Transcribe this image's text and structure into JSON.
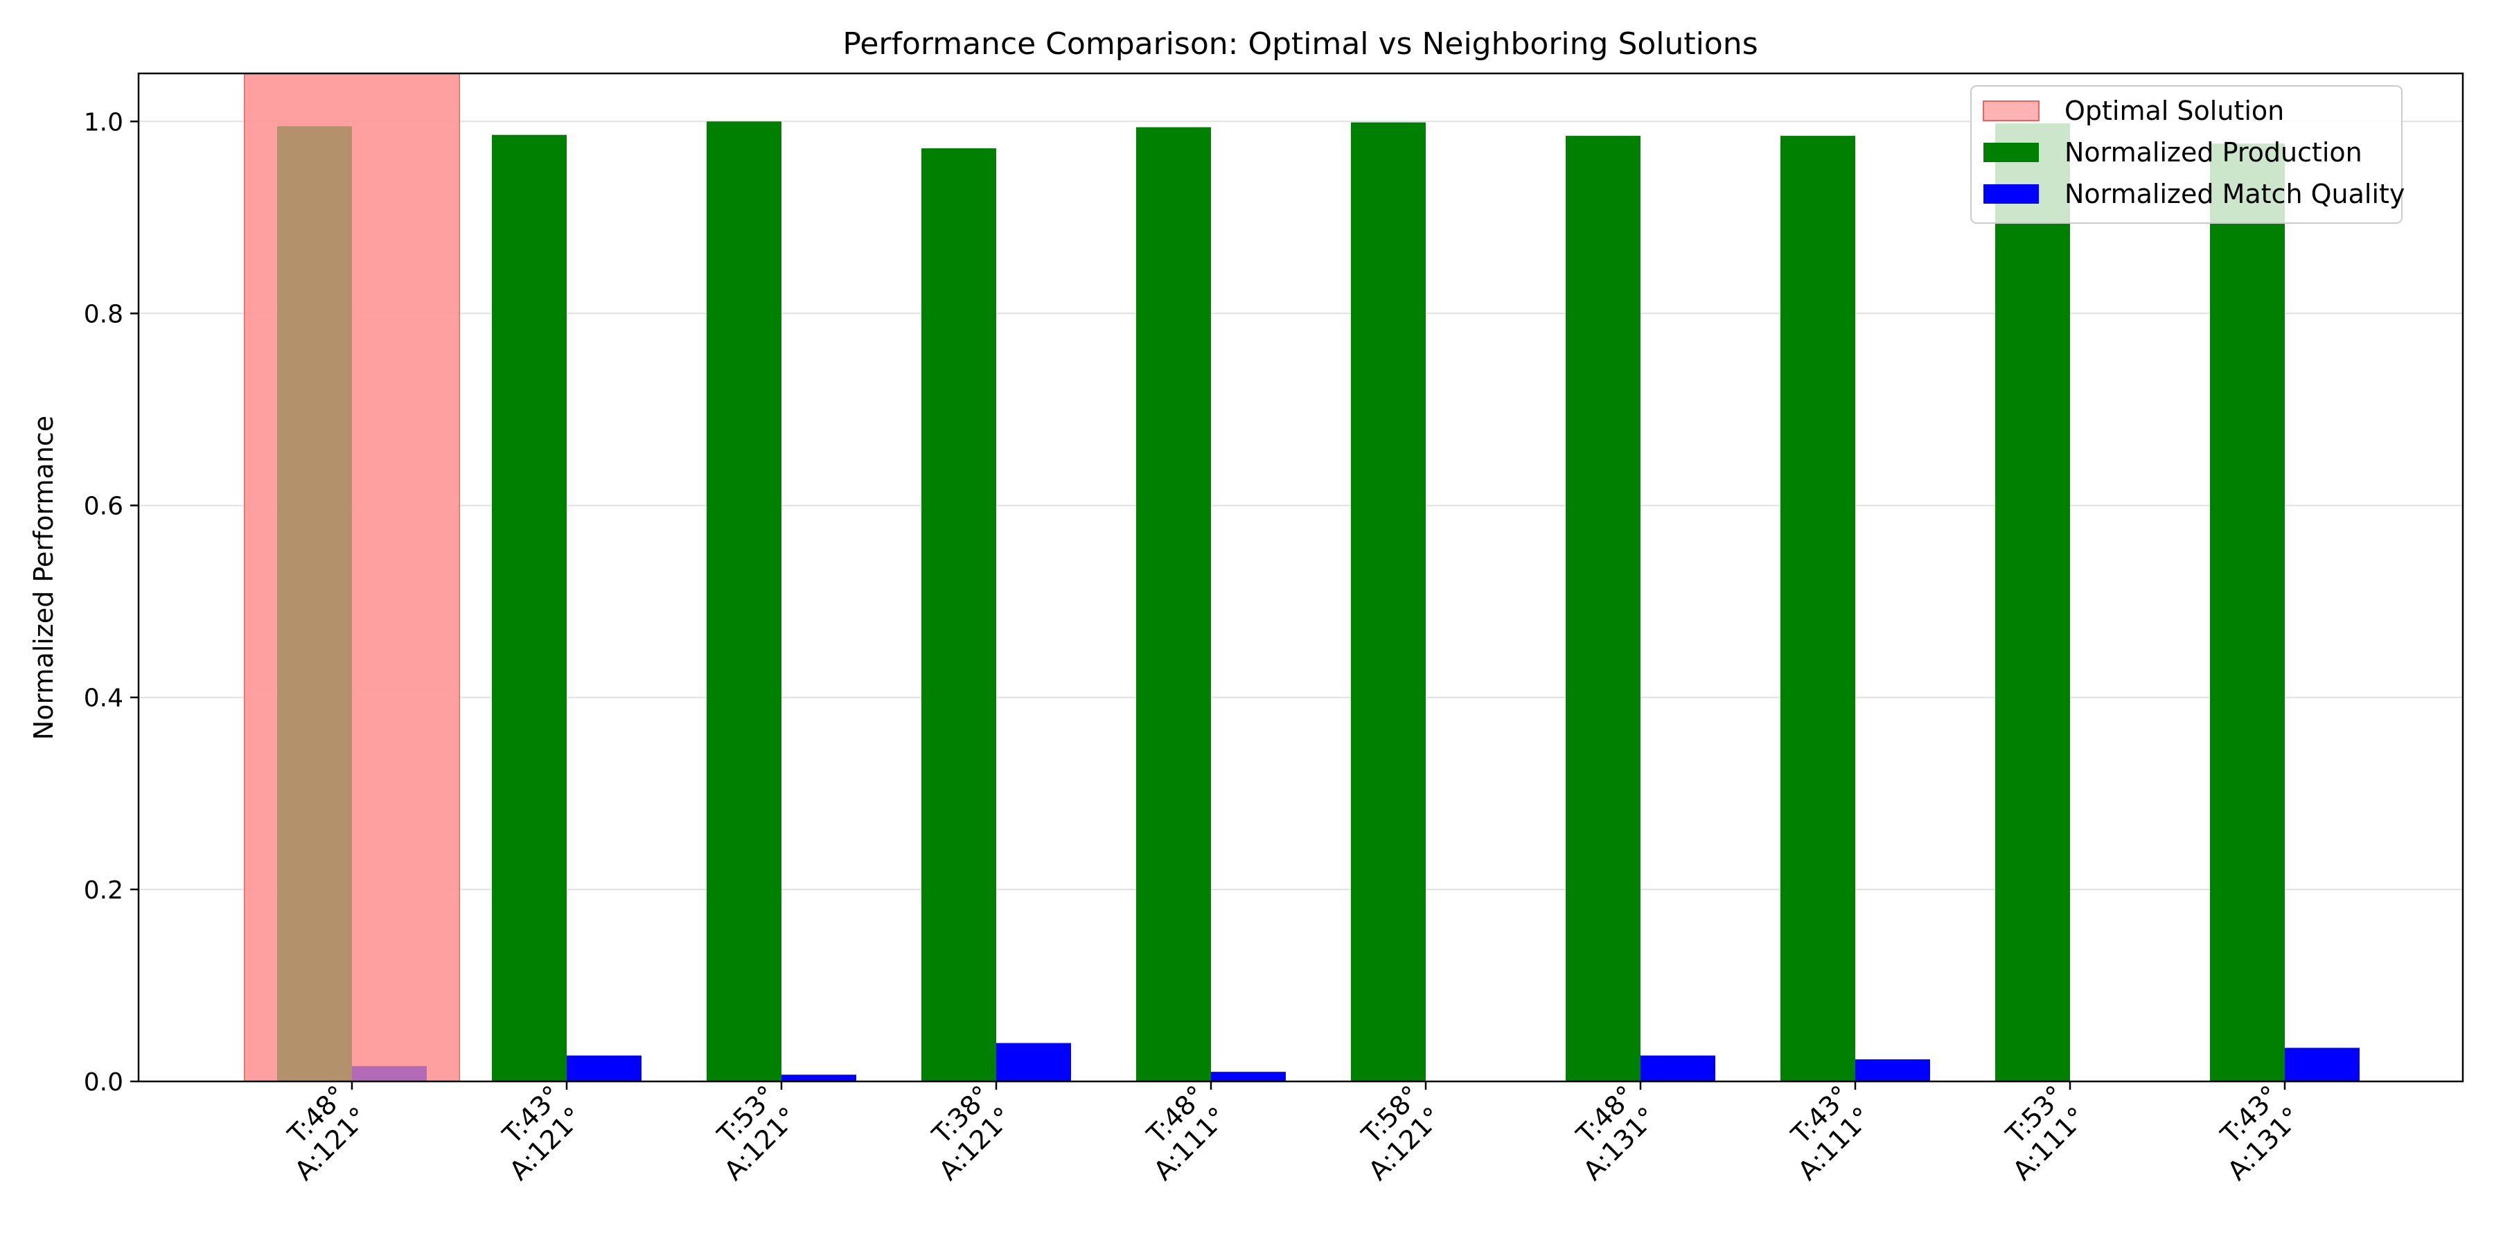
{
  "chart_data": {
    "type": "bar",
    "title": "Performance Comparison: Optimal vs Neighboring Solutions",
    "xlabel": "",
    "ylabel": "Normalized Performance",
    "ylim": [
      0,
      1.05
    ],
    "yticks": [
      "0.0",
      "0.2",
      "0.4",
      "0.6",
      "0.8",
      "1.0"
    ],
    "grid": "horizontal",
    "legend_position": "top-right",
    "categories": [
      [
        "T:48°",
        "A:121°"
      ],
      [
        "T:43°",
        "A:121°"
      ],
      [
        "T:53°",
        "A:121°"
      ],
      [
        "T:38°",
        "A:121°"
      ],
      [
        "T:48°",
        "A:111°"
      ],
      [
        "T:58°",
        "A:121°"
      ],
      [
        "T:48°",
        "A:131°"
      ],
      [
        "T:43°",
        "A:111°"
      ],
      [
        "T:53°",
        "A:111°"
      ],
      [
        "T:43°",
        "A:131°"
      ]
    ],
    "series": [
      {
        "name": "Normalized Production",
        "color": "#008000",
        "values": [
          0.995,
          0.986,
          1.0,
          0.972,
          0.994,
          0.999,
          0.985,
          0.985,
          0.998,
          0.977
        ]
      },
      {
        "name": "Normalized Match Quality",
        "color": "#0000ff",
        "values": [
          0.016,
          0.027,
          0.007,
          0.04,
          0.01,
          0.0,
          0.027,
          0.023,
          0.0,
          0.035
        ]
      }
    ],
    "highlight": {
      "name": "Optimal Solution",
      "category_index": 0,
      "color": "#ff9999"
    }
  }
}
